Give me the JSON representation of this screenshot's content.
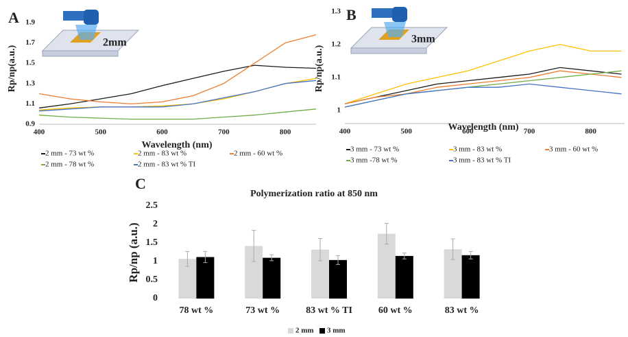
{
  "chart_data": [
    {
      "type": "line",
      "panel": "A",
      "annotation": "2mm",
      "x_label": "Wavelength (nm)",
      "y_label": "Rp/np(a.u.)",
      "x": [
        400,
        450,
        500,
        550,
        600,
        650,
        700,
        750,
        800,
        850
      ],
      "xlim": [
        400,
        850
      ],
      "xticks": [
        400,
        500,
        600,
        700,
        800
      ],
      "ylim": [
        0.9,
        2.0
      ],
      "yticks": [
        0.9,
        1.1,
        1.3,
        1.5,
        1.7,
        1.9
      ],
      "series": [
        {
          "name": "2 mm - 73 wt %",
          "color": "#1a1a1a",
          "values": [
            1.06,
            1.1,
            1.15,
            1.2,
            1.28,
            1.35,
            1.42,
            1.48,
            1.46,
            1.45
          ]
        },
        {
          "name": "2 mm - 83 wt %",
          "color": "#ffc000",
          "values": [
            1.04,
            1.06,
            1.07,
            1.07,
            1.08,
            1.1,
            1.15,
            1.22,
            1.3,
            1.35
          ]
        },
        {
          "name": "2 mm - 60 wt %",
          "color": "#ed7d31",
          "values": [
            1.2,
            1.15,
            1.12,
            1.1,
            1.12,
            1.18,
            1.3,
            1.5,
            1.7,
            1.78
          ]
        },
        {
          "name": "2 mm - 78 wt %",
          "color": "#70ad47",
          "values": [
            0.99,
            0.97,
            0.96,
            0.95,
            0.95,
            0.95,
            0.97,
            0.99,
            1.02,
            1.05
          ]
        },
        {
          "name": "2 mm - 83 wt % TI",
          "color": "#4472c4",
          "values": [
            1.03,
            1.05,
            1.07,
            1.07,
            1.07,
            1.1,
            1.16,
            1.22,
            1.3,
            1.33
          ]
        }
      ]
    },
    {
      "type": "line",
      "panel": "B",
      "annotation": "3mm",
      "x_label": "Wavelength (nm)",
      "y_label": "Rp/np(a.u.)",
      "x": [
        400,
        450,
        500,
        550,
        600,
        650,
        700,
        750,
        800,
        850
      ],
      "xlim": [
        400,
        855
      ],
      "xticks": [
        400,
        500,
        600,
        700,
        800
      ],
      "ylim": [
        0.96,
        1.31
      ],
      "yticks": [
        1,
        1.1,
        1.2,
        1.3
      ],
      "series": [
        {
          "name": "3 mm - 73 wt %",
          "color": "#1a1a1a",
          "values": [
            1.02,
            1.04,
            1.06,
            1.08,
            1.09,
            1.1,
            1.11,
            1.13,
            1.12,
            1.11
          ]
        },
        {
          "name": "3 mm - 83 wt %",
          "color": "#ffc000",
          "values": [
            1.02,
            1.05,
            1.08,
            1.1,
            1.12,
            1.15,
            1.18,
            1.2,
            1.18,
            1.18
          ]
        },
        {
          "name": "3 mm - 60 wt %",
          "color": "#ed7d31",
          "values": [
            1.02,
            1.04,
            1.05,
            1.07,
            1.08,
            1.09,
            1.1,
            1.12,
            1.11,
            1.1
          ]
        },
        {
          "name": "3 mm -78 wt %",
          "color": "#70ad47",
          "values": [
            1.01,
            1.03,
            1.05,
            1.06,
            1.07,
            1.08,
            1.09,
            1.1,
            1.11,
            1.12
          ]
        },
        {
          "name": "3 mm - 83 wt % TI",
          "color": "#4472c4",
          "values": [
            1.01,
            1.03,
            1.05,
            1.06,
            1.07,
            1.07,
            1.08,
            1.07,
            1.06,
            1.05
          ]
        }
      ]
    },
    {
      "type": "bar",
      "panel": "C",
      "title": "Polymerization ratio at 850 nm",
      "y_label": "Rp/np (a.u.)",
      "categories": [
        "78 wt %",
        "73 wt %",
        "83 wt % TI",
        "60 wt %",
        "83 wt %"
      ],
      "ylim": [
        0,
        2.5
      ],
      "yticks": [
        0,
        0.5,
        1,
        1.5,
        2,
        2.5
      ],
      "series": [
        {
          "name": "2 mm",
          "color": "#d9d9d9",
          "values": [
            1.07,
            1.42,
            1.32,
            1.75,
            1.33
          ],
          "errors": [
            0.2,
            0.42,
            0.3,
            0.28,
            0.28
          ]
        },
        {
          "name": "3 mm",
          "color": "#000000",
          "values": [
            1.12,
            1.1,
            1.04,
            1.15,
            1.17
          ],
          "errors": [
            0.15,
            0.08,
            0.12,
            0.08,
            0.1
          ]
        }
      ]
    }
  ]
}
